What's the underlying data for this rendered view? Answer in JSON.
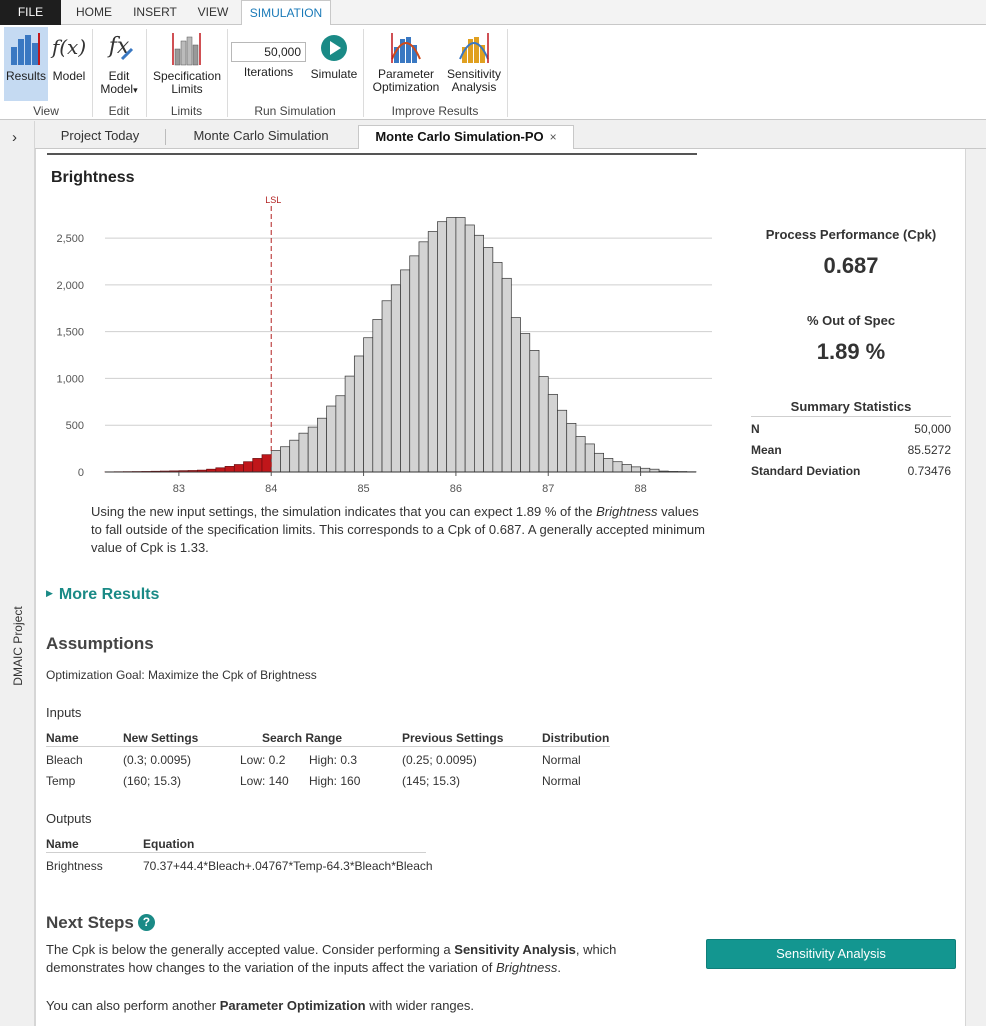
{
  "ribbon_tabs": [
    "FILE",
    "HOME",
    "INSERT",
    "VIEW",
    "SIMULATION"
  ],
  "ribbon": {
    "results_label": "Results",
    "model_label": "Model",
    "edit_model_label": "Edit Model",
    "edit_model_caret": "▾",
    "spec_limits_label_1": "Specification",
    "spec_limits_label_2": "Limits",
    "iterations_value": "50,000",
    "iterations_label": "Iterations",
    "simulate_label": "Simulate",
    "param_opt_label_1": "Parameter",
    "param_opt_label_2": "Optimization",
    "sens_label_1": "Sensitivity",
    "sens_label_2": "Analysis",
    "groups": [
      "View",
      "Edit",
      "Limits",
      "Run Simulation",
      "Improve Results"
    ],
    "fx_text": "f(x)",
    "fx_edit_text": "fx"
  },
  "rail": {
    "chevron": "›",
    "label": "DMAIC Project"
  },
  "doc_tabs": [
    "Project Today",
    "Monte Carlo Simulation",
    "Monte Carlo Simulation-PO"
  ],
  "doc_tab_close": "×",
  "chart_data": {
    "type": "bar",
    "title": "Brightness",
    "xlabel": "",
    "ylabel": "",
    "x_ticks": [
      83,
      84,
      85,
      86,
      87,
      88
    ],
    "y_ticks": [
      0,
      500,
      1000,
      1500,
      2000,
      2500
    ],
    "y_tick_labels": [
      "0",
      "500",
      "1,000",
      "1,500",
      "2,000",
      "2,500"
    ],
    "xlim": [
      82.2,
      88.6
    ],
    "ylim": [
      0,
      2800
    ],
    "bin_width": 0.1,
    "bin_start": 82.2,
    "values": [
      2,
      3,
      4,
      5,
      6,
      8,
      10,
      12,
      14,
      16,
      20,
      30,
      45,
      60,
      80,
      110,
      145,
      185,
      230,
      270,
      340,
      415,
      480,
      575,
      705,
      815,
      1025,
      1240,
      1435,
      1630,
      1830,
      2000,
      2160,
      2310,
      2460,
      2570,
      2675,
      2720,
      2720,
      2640,
      2530,
      2400,
      2240,
      2070,
      1650,
      1480,
      1300,
      1020,
      830,
      660,
      520,
      380,
      300,
      200,
      145,
      110,
      80,
      55,
      40,
      30,
      10,
      6,
      5,
      3
    ],
    "lsl": 84.0,
    "lsl_label": "LSL",
    "colors": {
      "in_spec": "#d3d3d3",
      "out_spec": "#c0161a",
      "lsl": "#b22222",
      "grid": "#cfcfcf"
    }
  },
  "description": {
    "p1": "Using the new input settings, the simulation indicates that you can expect 1.89 % of the ",
    "italic": "Brightness",
    "p2": " values to fall outside of the specification limits. This corresponds to a Cpk of 0.687. A generally accepted minimum value of Cpk is 1.33."
  },
  "performance": {
    "title": "Process Performance (Cpk)",
    "value": "0.687",
    "oos_title": "% Out of Spec",
    "oos_value": "1.89 %"
  },
  "summary_stats": {
    "title": "Summary Statistics",
    "rows": [
      {
        "label": "N",
        "value": "50,000"
      },
      {
        "label": "Mean",
        "value": "85.5272"
      },
      {
        "label": "Standard Deviation",
        "value": "0.73476"
      }
    ]
  },
  "more_results": "More Results",
  "assumptions": {
    "title": "Assumptions",
    "goal": "Optimization Goal: Maximize the Cpk of Brightness",
    "inputs_title": "Inputs",
    "headers": {
      "name": "Name",
      "new": "New Settings",
      "range": "Search Range",
      "prev": "Previous Settings",
      "dist": "Distribution"
    },
    "rows": [
      {
        "name": "Bleach",
        "new": "(0.3; 0.0095)",
        "low": "Low: 0.2",
        "high": "High: 0.3",
        "prev": "(0.25; 0.0095)",
        "dist": "Normal"
      },
      {
        "name": "Temp",
        "new": "(160; 15.3)",
        "low": "Low: 140",
        "high": "High: 160",
        "prev": "(145; 15.3)",
        "dist": "Normal"
      }
    ],
    "outputs_title": "Outputs",
    "out_headers": {
      "name": "Name",
      "eq": "Equation"
    },
    "out_row": {
      "name": "Brightness",
      "eq": "70.37+44.4*Bleach+.04767*Temp-64.3*Bleach*Bleach"
    }
  },
  "next_steps": {
    "title": "Next Steps",
    "help": "?",
    "t1a": "The Cpk is below the generally accepted value. Consider performing a ",
    "t1b": "Sensitivity Analysis",
    "t1c": ", which demonstrates how changes to the variation of the inputs affect the variation of ",
    "t1d": "Brightness",
    "t1e": ".",
    "t2a": "You can also perform another ",
    "t2b": "Parameter Optimization",
    "t2c": " with wider ranges.",
    "button": "Sensitivity Analysis"
  }
}
